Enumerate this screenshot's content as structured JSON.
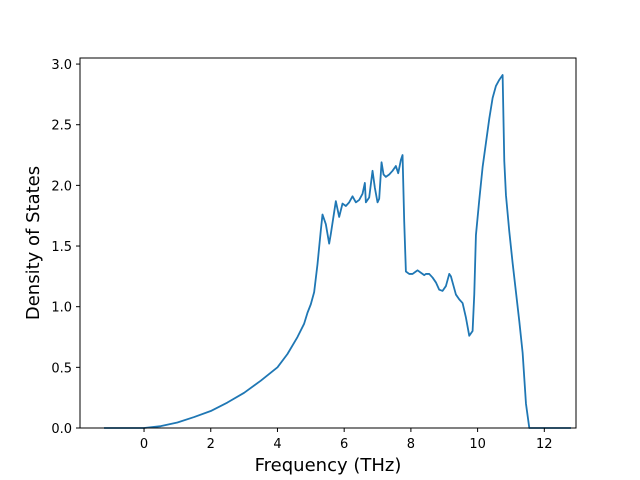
{
  "chart_data": {
    "type": "line",
    "title": "",
    "xlabel": "Frequency (THz)",
    "ylabel": "Density of States",
    "xlim": [
      -1.92,
      12.95
    ],
    "ylim": [
      0,
      3.05
    ],
    "xticks": [
      0,
      2,
      4,
      6,
      8,
      10,
      12
    ],
    "yticks": [
      0.0,
      0.5,
      1.0,
      1.5,
      2.0,
      2.5,
      3.0
    ],
    "ytick_labels": [
      "0.0",
      "0.5",
      "1.0",
      "1.5",
      "2.0",
      "2.5",
      "3.0"
    ],
    "grid": false,
    "legend": "none",
    "line_color": "#1f77b4",
    "series": [
      {
        "x": [
          -1.2,
          -0.5,
          0,
          0.5,
          1,
          1.5,
          2,
          2.5,
          3,
          3.5,
          4,
          4.3,
          4.6,
          4.8,
          4.9,
          5.0,
          5.1,
          5.2,
          5.3,
          5.35,
          5.45,
          5.55,
          5.6,
          5.7,
          5.75,
          5.85,
          5.95,
          6.05,
          6.15,
          6.25,
          6.35,
          6.45,
          6.55,
          6.62,
          6.65,
          6.75,
          6.85,
          6.92,
          7.0,
          7.05,
          7.12,
          7.18,
          7.25,
          7.35,
          7.45,
          7.55,
          7.62,
          7.7,
          7.75,
          7.8,
          7.85,
          7.95,
          8.05,
          8.15,
          8.2,
          8.3,
          8.4,
          8.45,
          8.55,
          8.65,
          8.75,
          8.85,
          8.95,
          9.05,
          9.15,
          9.2,
          9.25,
          9.35,
          9.45,
          9.55,
          9.65,
          9.75,
          9.85,
          9.9,
          9.95,
          10.05,
          10.15,
          10.25,
          10.35,
          10.45,
          10.55,
          10.65,
          10.75,
          10.8,
          10.85,
          10.95,
          11.05,
          11.15,
          11.25,
          11.35,
          11.45,
          11.55,
          11.62,
          11.7,
          12.0,
          12.3,
          12.8
        ],
        "y": [
          0,
          0,
          0,
          0.015,
          0.045,
          0.09,
          0.14,
          0.21,
          0.29,
          0.39,
          0.5,
          0.61,
          0.75,
          0.86,
          0.95,
          1.02,
          1.12,
          1.35,
          1.63,
          1.76,
          1.68,
          1.52,
          1.6,
          1.78,
          1.87,
          1.74,
          1.85,
          1.83,
          1.86,
          1.91,
          1.86,
          1.88,
          1.93,
          2.02,
          1.86,
          1.9,
          2.12,
          1.98,
          1.86,
          1.89,
          2.19,
          2.09,
          2.07,
          2.09,
          2.12,
          2.16,
          2.1,
          2.21,
          2.25,
          1.7,
          1.29,
          1.27,
          1.27,
          1.29,
          1.3,
          1.28,
          1.26,
          1.27,
          1.27,
          1.24,
          1.2,
          1.14,
          1.13,
          1.17,
          1.27,
          1.25,
          1.2,
          1.1,
          1.06,
          1.03,
          0.91,
          0.76,
          0.8,
          1.1,
          1.59,
          1.88,
          2.15,
          2.35,
          2.55,
          2.72,
          2.82,
          2.87,
          2.91,
          2.2,
          1.92,
          1.62,
          1.36,
          1.12,
          0.88,
          0.62,
          0.2,
          0.0,
          0,
          0,
          0,
          0,
          0
        ]
      }
    ]
  }
}
